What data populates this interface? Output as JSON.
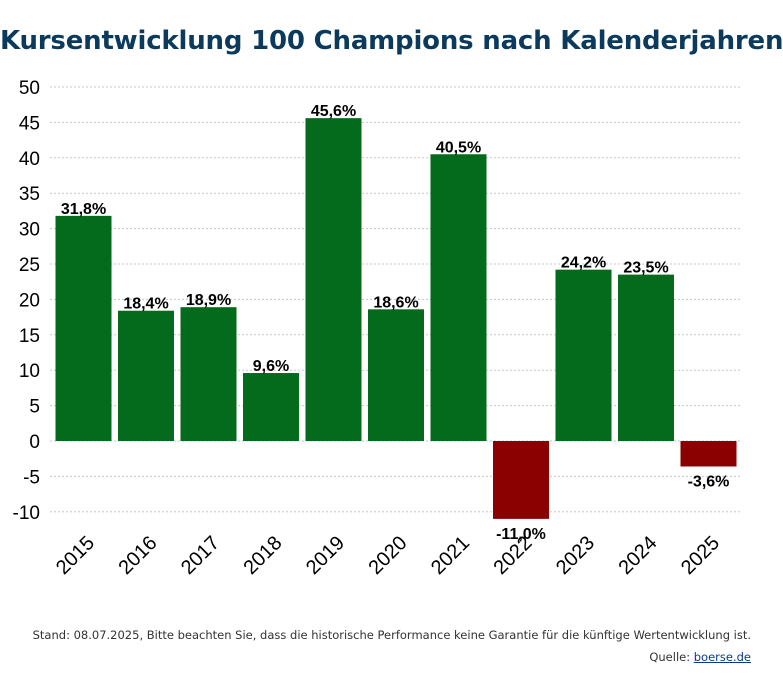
{
  "colors": {
    "title": "#0b3a5c",
    "positive_bar": "#046b1c",
    "negative_bar": "#8b0000",
    "grid": "#c8c8c8",
    "text": "#000000"
  },
  "footer": {
    "note": "Stand: 08.07.2025, Bitte beachten Sie, dass die historische Performance keine Garantie für die künftige Wertentwicklung ist.",
    "source_label": "Quelle: ",
    "source_link": "boerse.de"
  },
  "chart_data": {
    "type": "bar",
    "title": "Kursentwicklung 100 Champions nach Kalenderjahren",
    "categories": [
      "2015",
      "2016",
      "2017",
      "2018",
      "2019",
      "2020",
      "2021",
      "2022",
      "2023",
      "2024",
      "2025"
    ],
    "values": [
      31.8,
      18.4,
      18.9,
      9.6,
      45.6,
      18.6,
      40.5,
      -11.0,
      24.2,
      23.5,
      -3.6
    ],
    "data_labels": [
      "31,8%",
      "18,4%",
      "18,9%",
      "9,6%",
      "45,6%",
      "18,6%",
      "40,5%",
      "-11,0%",
      "24,2%",
      "23,5%",
      "-3,6%"
    ],
    "xlabel": "",
    "ylabel": "",
    "ylim": [
      -10,
      50
    ],
    "yticks": [
      "50",
      "45",
      "40",
      "35",
      "30",
      "25",
      "20",
      "15",
      "10",
      "5",
      "0",
      "-5",
      "-10"
    ],
    "grid": true,
    "legend": "none"
  }
}
